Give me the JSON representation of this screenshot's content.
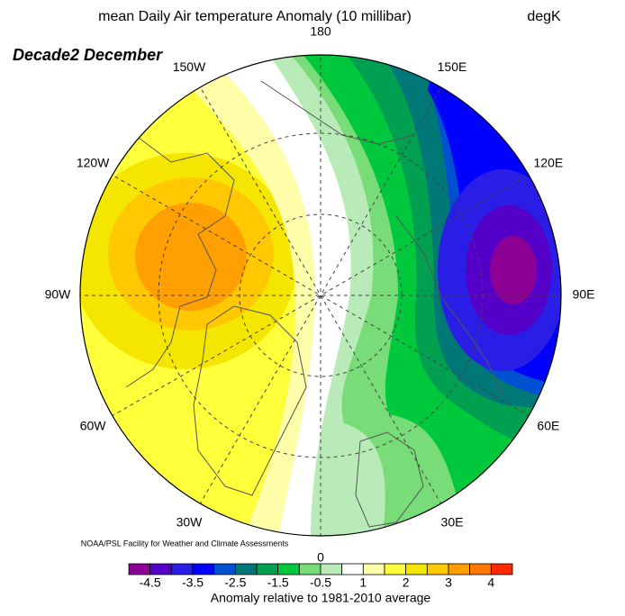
{
  "header": {
    "title": "mean Daily Air temperature Anomaly (10 millibar)",
    "units": "degK",
    "subtitle": "Decade2 December"
  },
  "map": {
    "longitude_labels": [
      "180",
      "150E",
      "120E",
      "90E",
      "60E",
      "30E",
      "0",
      "30W",
      "60W",
      "90W",
      "120W",
      "150W"
    ]
  },
  "credit": "NOAA/PSL Facility for Weather and Climate Assessments",
  "colorbar": {
    "labels": [
      "-4.5",
      "-3.5",
      "-2.5",
      "-1.5",
      "-0.5",
      "1",
      "2",
      "3",
      "4"
    ],
    "colors": [
      "#8c0096",
      "#5500c8",
      "#2a1ee6",
      "#0000ff",
      "#0050d2",
      "#007878",
      "#00a050",
      "#00c83c",
      "#78dc78",
      "#b9ebb9",
      "#ffffff",
      "#ffffaa",
      "#ffff3c",
      "#f5e600",
      "#ffc800",
      "#ffa000",
      "#ff7800",
      "#ff2800"
    ],
    "caption": "Anomaly relative to 1981-2010 average"
  }
}
